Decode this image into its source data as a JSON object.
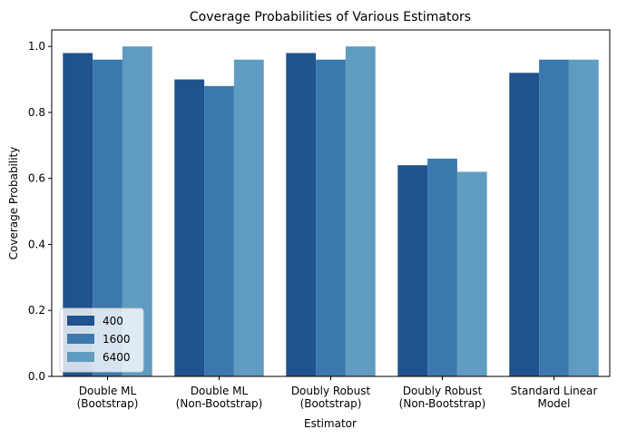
{
  "chart_data": {
    "type": "bar",
    "title": "Coverage Probabilities of Various Estimators",
    "xlabel": "Estimator",
    "ylabel": "Coverage Probability",
    "ylim": [
      0,
      1.05
    ],
    "yticks": [
      "0.0",
      "0.2",
      "0.4",
      "0.6",
      "0.8",
      "1.0"
    ],
    "categories": [
      [
        "Double ML",
        "(Bootstrap)"
      ],
      [
        "Double ML",
        "(Non-Bootstrap)"
      ],
      [
        "Doubly Robust",
        "(Bootstrap)"
      ],
      [
        "Doubly Robust",
        "(Non-Bootstrap)"
      ],
      [
        "Standard Linear",
        "Model"
      ]
    ],
    "series": [
      {
        "name": "400",
        "color": "#1f538e",
        "values": [
          0.98,
          0.9,
          0.98,
          0.64,
          0.92
        ]
      },
      {
        "name": "1600",
        "color": "#3a78ad",
        "values": [
          0.96,
          0.88,
          0.96,
          0.66,
          0.96
        ]
      },
      {
        "name": "6400",
        "color": "#609bc1",
        "values": [
          1.0,
          0.96,
          1.0,
          0.62,
          0.96
        ]
      }
    ],
    "legend_position": "lower-left",
    "grid": false
  }
}
